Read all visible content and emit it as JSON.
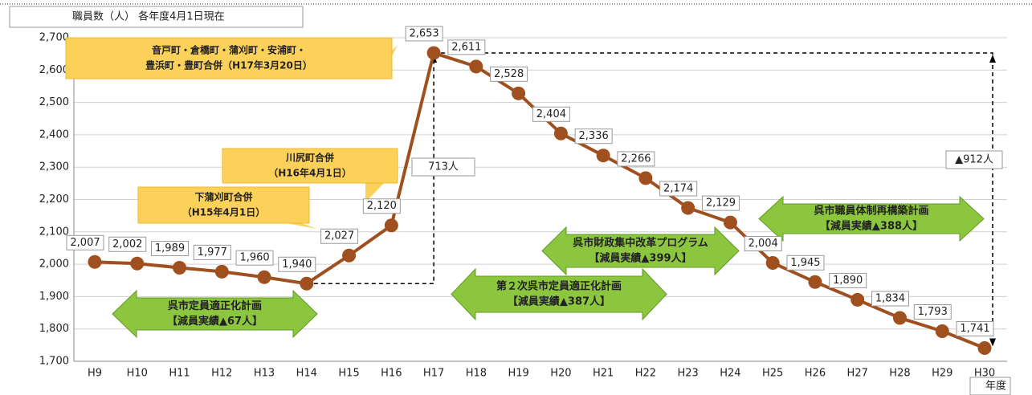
{
  "chart_data": {
    "type": "line",
    "title": "職員数（人） 各年度4月1日現在",
    "x_label": "年度",
    "categories": [
      "H9",
      "H10",
      "H11",
      "H12",
      "H13",
      "H14",
      "H15",
      "H16",
      "H17",
      "H18",
      "H19",
      "H20",
      "H21",
      "H22",
      "H23",
      "H24",
      "H25",
      "H26",
      "H27",
      "H28",
      "H29",
      "H30"
    ],
    "series": [
      {
        "color": "#a0501e",
        "values": [
          2007,
          2002,
          1989,
          1977,
          1960,
          1940,
          2027,
          2120,
          2653,
          2611,
          2528,
          2404,
          2336,
          2266,
          2174,
          2129,
          2004,
          1945,
          1890,
          1834,
          1793,
          1741
        ],
        "value_labels": [
          "2,007",
          "2,002",
          "1,989",
          "1,977",
          "1,960",
          "1,940",
          "2,027",
          "2,120",
          "2,653",
          "2,611",
          "2,528",
          "2,404",
          "2,336",
          "2,266",
          "2,174",
          "2,129",
          "2,004",
          "1,945",
          "1,890",
          "1,834",
          "1,793",
          "1,741"
        ]
      }
    ],
    "ylim": [
      1700,
      2700
    ],
    "yticks": [
      {
        "value": 1700,
        "label": "1,700"
      },
      {
        "value": 1800,
        "label": "1,800"
      },
      {
        "value": 1900,
        "label": "1,900"
      },
      {
        "value": 2000,
        "label": "2,000"
      },
      {
        "value": 2100,
        "label": "2,100"
      },
      {
        "value": 2200,
        "label": "2,200"
      },
      {
        "value": 2300,
        "label": "2,300"
      },
      {
        "value": 2400,
        "label": "2,400"
      },
      {
        "value": 2500,
        "label": "2,500"
      },
      {
        "value": 2600,
        "label": "2,600"
      },
      {
        "value": 2700,
        "label": "2,700"
      }
    ],
    "grid": true,
    "callouts": [
      {
        "lines": [
          "音戸町・倉橋町・蒲刈町・安浦町・",
          "豊浜町・豊町合併（H17年3月20日）"
        ]
      },
      {
        "lines": [
          "川尻町合併",
          "（H16年4月1日）"
        ]
      },
      {
        "lines": [
          "下蒲刈町合併",
          "（H15年4月1日）"
        ]
      }
    ],
    "plans": [
      {
        "lines": [
          "呉市定員適正化計画",
          "【減員実績▲67人】"
        ]
      },
      {
        "lines": [
          "第２次呉市定員適正化計画",
          "【減員実績▲387人】"
        ]
      },
      {
        "lines": [
          "呉市財政集中改革プログラム",
          "【減員実績▲399人】"
        ]
      },
      {
        "lines": [
          "呉市職員体制再構築計画",
          "【減員実績▲388人】"
        ]
      }
    ],
    "differences": [
      "713人",
      "▲912人"
    ]
  }
}
